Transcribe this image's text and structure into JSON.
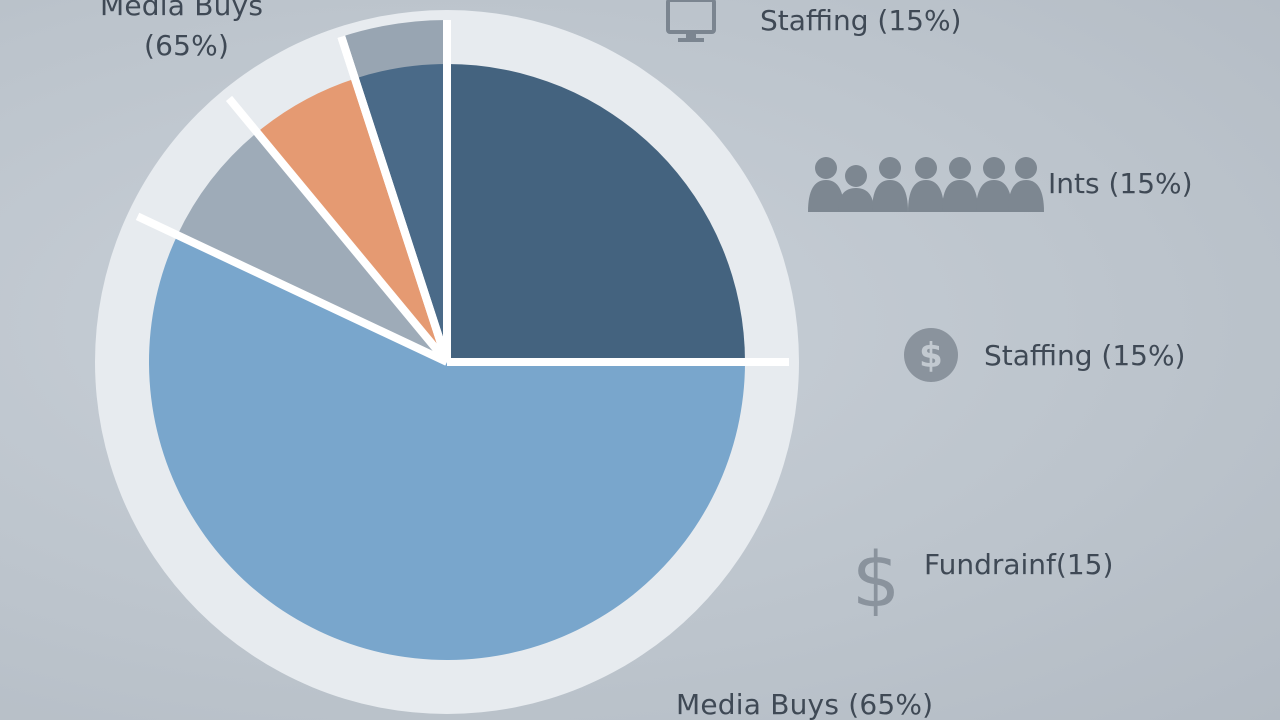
{
  "chart_data": {
    "type": "pie",
    "slices": [
      {
        "label": "",
        "value": 25,
        "color": "#44637f"
      },
      {
        "label": "",
        "value": 57,
        "color": "#79a6cc"
      },
      {
        "label": "",
        "value": 7,
        "color": "#9eabb8"
      },
      {
        "label": "",
        "value": 6,
        "color": "#e59a72"
      },
      {
        "label": "",
        "value": 5,
        "color": "#4a6a88"
      }
    ],
    "outer_tab": {
      "value": 5,
      "color": "#98a5b2"
    },
    "ring_color": "#e7ebef",
    "separator_color": "#ffffff"
  },
  "labels": {
    "top_left_line1": "Media Buys",
    "top_left_line2": "(65%)",
    "legend": [
      {
        "icon": "monitor-icon",
        "text": "Staffing (15%)"
      },
      {
        "icon": "people-icon",
        "text": "Ints  (15%)"
      },
      {
        "icon": "dollar-coin-icon",
        "text": "Staffing (15%)"
      },
      {
        "icon": "dollar-sign-icon",
        "text": "Fundrainf(15)"
      }
    ],
    "bottom": "Media Buys (65%)"
  }
}
